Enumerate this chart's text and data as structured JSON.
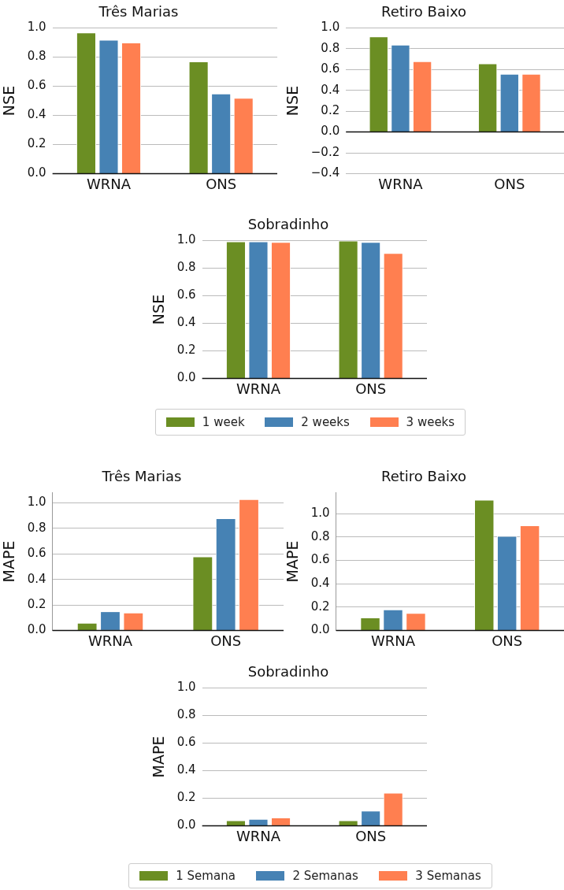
{
  "chart_data": [
    {
      "type": "bar",
      "title": "Três Marias",
      "ylabel": "NSE",
      "categories": [
        "WRNA",
        "ONS"
      ],
      "series": [
        {
          "color": "#6b8e23",
          "values": [
            0.97,
            0.77
          ]
        },
        {
          "color": "#4682b4",
          "values": [
            0.92,
            0.55
          ]
        },
        {
          "color": "#ff7f50",
          "values": [
            0.9,
            0.52
          ]
        }
      ],
      "ylim": [
        0,
        1
      ],
      "yticks": [
        {
          "value": 0,
          "label": "0.0"
        },
        0.2,
        0.4,
        0.6,
        0.8,
        {
          "value": 1,
          "label": "1.0"
        }
      ],
      "grid": "y",
      "legend": false
    },
    {
      "type": "bar",
      "title": "Retiro Baixo",
      "ylabel": "NSE",
      "categories": [
        "WRNA",
        "ONS"
      ],
      "series": [
        {
          "color": "#6b8e23",
          "values": [
            0.92,
            0.66
          ]
        },
        {
          "color": "#4682b4",
          "values": [
            0.84,
            0.56
          ]
        },
        {
          "color": "#ff7f50",
          "values": [
            0.68,
            0.56
          ]
        }
      ],
      "ylim": [
        -0.4,
        1
      ],
      "yticks": [
        {
          "value": -0.4,
          "label": "−0.4"
        },
        {
          "value": -0.2,
          "label": "−0.2"
        },
        {
          "value": 0,
          "label": "0.0"
        },
        0.2,
        0.4,
        0.6,
        0.8,
        {
          "value": 1,
          "label": "1.0"
        }
      ],
      "grid": "y",
      "legend": false
    },
    {
      "type": "bar",
      "title": "Sobradinho",
      "ylabel": "NSE",
      "categories": [
        "WRNA",
        "ONS"
      ],
      "series": [
        {
          "name": "1 week",
          "color": "#6b8e23",
          "values": [
            0.995,
            1.0
          ]
        },
        {
          "name": "2 weeks",
          "color": "#4682b4",
          "values": [
            0.995,
            0.99
          ]
        },
        {
          "name": "3 weeks",
          "color": "#ff7f50",
          "values": [
            0.99,
            0.91
          ]
        }
      ],
      "ylim": [
        0,
        1.0
      ],
      "yticks": [
        {
          "value": 0,
          "label": "0.0"
        },
        0.2,
        0.4,
        0.6,
        0.8,
        {
          "value": 1,
          "label": "1.0"
        }
      ],
      "grid": "y",
      "legend": "bottom"
    },
    {
      "type": "bar",
      "title": "Três Marias",
      "ylabel": "MAPE",
      "categories": [
        "WRNA",
        "ONS"
      ],
      "series": [
        {
          "color": "#6b8e23",
          "values": [
            0.06,
            0.58
          ]
        },
        {
          "color": "#4682b4",
          "values": [
            0.15,
            0.88
          ]
        },
        {
          "color": "#ff7f50",
          "values": [
            0.14,
            1.03
          ]
        }
      ],
      "ylim": [
        0,
        1.08
      ],
      "yticks": [
        {
          "value": 0,
          "label": "0.0"
        },
        0.2,
        0.4,
        0.6,
        0.8,
        {
          "value": 1,
          "label": "1.0"
        }
      ],
      "grid": "y",
      "legend": false
    },
    {
      "type": "bar",
      "title": "Retiro Baixo",
      "ylabel": "MAPE",
      "categories": [
        "WRNA",
        "ONS"
      ],
      "series": [
        {
          "color": "#6b8e23",
          "values": [
            0.11,
            1.12
          ]
        },
        {
          "color": "#4682b4",
          "values": [
            0.18,
            0.81
          ]
        },
        {
          "color": "#ff7f50",
          "values": [
            0.15,
            0.9
          ]
        }
      ],
      "ylim": [
        0,
        1.18
      ],
      "yticks": [
        {
          "value": 0,
          "label": "0.0"
        },
        0.2,
        0.4,
        0.6,
        0.8,
        {
          "value": 1,
          "label": "1.0"
        }
      ],
      "grid": "y",
      "legend": false
    },
    {
      "type": "bar",
      "title": "Sobradinho",
      "ylabel": "MAPE",
      "categories": [
        "WRNA",
        "ONS"
      ],
      "series": [
        {
          "name": "1 Semana",
          "color": "#6b8e23",
          "values": [
            0.04,
            0.04
          ]
        },
        {
          "name": "2 Semanas",
          "color": "#4682b4",
          "values": [
            0.05,
            0.11
          ]
        },
        {
          "name": "3 Semanas",
          "color": "#ff7f50",
          "values": [
            0.06,
            0.24
          ]
        }
      ],
      "ylim": [
        0,
        1.0
      ],
      "yticks": [
        {
          "value": 0,
          "label": "0.0"
        },
        0.2,
        0.4,
        0.6,
        0.8,
        {
          "value": 1,
          "label": "1.0"
        }
      ],
      "grid": "y",
      "legend": "bottom"
    }
  ]
}
